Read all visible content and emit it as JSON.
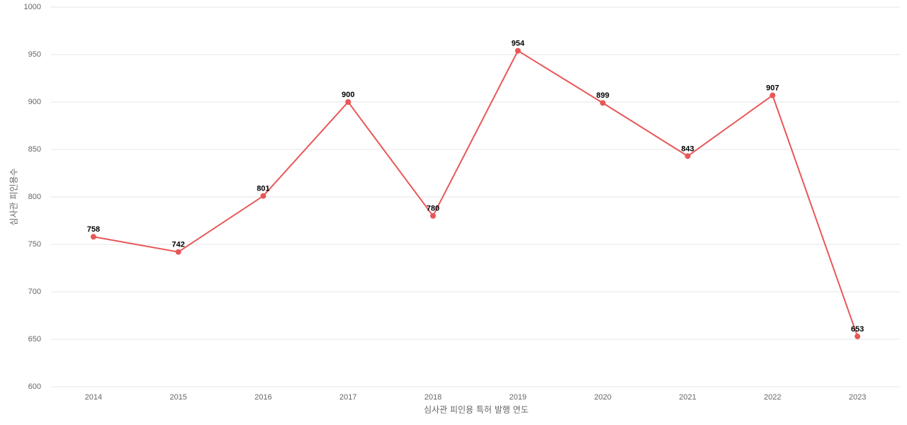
{
  "chart_data": {
    "type": "line",
    "x_label": "심사관 피인용 특허 발행 연도",
    "y_label": "심사관 피인용수",
    "categories": [
      "2014",
      "2015",
      "2016",
      "2017",
      "2018",
      "2019",
      "2020",
      "2021",
      "2022",
      "2023"
    ],
    "values": [
      758,
      742,
      801,
      900,
      780,
      954,
      899,
      843,
      907,
      653
    ],
    "color": "#e85757",
    "ylim": [
      600,
      1000
    ],
    "yticks": [
      600,
      650,
      700,
      750,
      800,
      850,
      900,
      950,
      1000
    ],
    "grid": true
  }
}
